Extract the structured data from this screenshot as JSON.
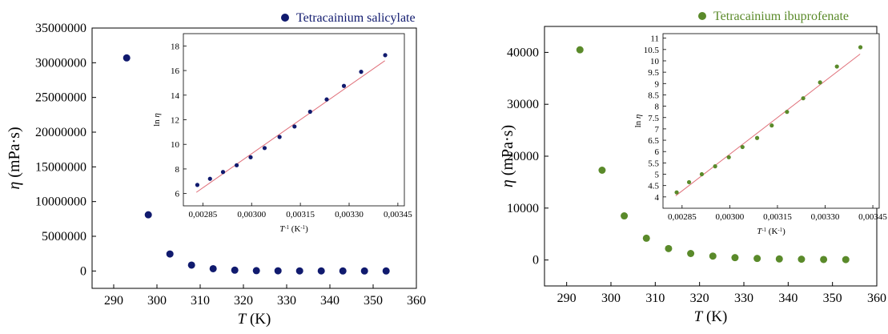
{
  "chart_data": [
    {
      "type": "scatter",
      "legend": "Tetracainium salicylate",
      "legend_position": "top-right",
      "color": "#101a6e",
      "xlabel": "T (K)",
      "ylabel": "η (mPa·s)",
      "xlim": [
        285,
        360
      ],
      "ylim": [
        -2500000,
        35000000
      ],
      "xticks": [
        290,
        300,
        310,
        320,
        330,
        340,
        350,
        360
      ],
      "yticks": [
        0,
        5000000,
        10000000,
        15000000,
        20000000,
        25000000,
        30000000,
        35000000
      ],
      "grid": false,
      "x": [
        293,
        298,
        303,
        308,
        313,
        318,
        323,
        328,
        333,
        338,
        343,
        348,
        353
      ],
      "y": [
        30700000,
        8100000,
        2450000,
        850000,
        330000,
        120000,
        50000,
        25000,
        15000,
        9000,
        6000,
        4000,
        3000
      ],
      "inset": {
        "type": "scatter",
        "xlabel": "T⁻¹ (K⁻¹)",
        "ylabel": "ln η",
        "xlim": [
          0.00279,
          0.00347
        ],
        "ylim": [
          5,
          19
        ],
        "xticks": [
          "0,00285",
          "0,00300",
          "0,00315",
          "0,00330",
          "0,00345"
        ],
        "xtick_values": [
          0.00285,
          0.003,
          0.00315,
          0.0033,
          0.00345
        ],
        "yticks": [
          6,
          8,
          10,
          12,
          14,
          16,
          18
        ],
        "fit_color": "#e0707a",
        "fit_line": [
          [
            0.00283,
            6.1
          ],
          [
            0.00341,
            16.8
          ]
        ],
        "x": [
          0.002833,
          0.002872,
          0.002912,
          0.002954,
          0.002997,
          0.00304,
          0.003086,
          0.003132,
          0.00318,
          0.003231,
          0.003284,
          0.003337,
          0.003411
        ],
        "y": [
          6.7,
          7.2,
          7.75,
          8.3,
          8.95,
          9.7,
          10.6,
          11.45,
          12.65,
          13.65,
          14.75,
          15.9,
          17.25
        ]
      }
    },
    {
      "type": "scatter",
      "legend": "Tetracainium ibuprofenate",
      "legend_position": "top-right",
      "color": "#5a8a2a",
      "xlabel": "T (K)",
      "ylabel": "η (mPa·s)",
      "xlim": [
        285,
        360
      ],
      "ylim": [
        -5000,
        45000
      ],
      "xticks": [
        290,
        300,
        310,
        320,
        330,
        340,
        350,
        360
      ],
      "yticks": [
        0,
        10000,
        20000,
        30000,
        40000
      ],
      "grid": false,
      "x": [
        293,
        298,
        303,
        308,
        313,
        318,
        323,
        328,
        333,
        338,
        343,
        348,
        353
      ],
      "y": [
        40500,
        17300,
        8500,
        4200,
        2200,
        1250,
        750,
        450,
        300,
        200,
        150,
        100,
        80
      ],
      "inset": {
        "type": "scatter",
        "xlabel": "T⁻¹ (K⁻¹)",
        "ylabel": "ln η",
        "xlim": [
          0.00279,
          0.00347
        ],
        "ylim": [
          3.5,
          11.2
        ],
        "xticks": [
          "0,00285",
          "0,00300",
          "0,00315",
          "0,00330",
          "0,00345"
        ],
        "xtick_values": [
          0.00285,
          0.003,
          0.00315,
          0.0033,
          0.00345
        ],
        "yticks": [
          4,
          4.5,
          5,
          5.5,
          6,
          6.5,
          7,
          7.5,
          8,
          8.5,
          9,
          9.5,
          10,
          10.5,
          11
        ],
        "fit_color": "#e0707a",
        "fit_line": [
          [
            0.00283,
            4.05
          ],
          [
            0.00341,
            10.3
          ]
        ],
        "x": [
          0.002833,
          0.002872,
          0.002912,
          0.002954,
          0.002997,
          0.00304,
          0.003086,
          0.003132,
          0.00318,
          0.003231,
          0.003284,
          0.003337,
          0.003411
        ],
        "y": [
          4.2,
          4.65,
          5.0,
          5.35,
          5.75,
          6.2,
          6.6,
          7.15,
          7.75,
          8.35,
          9.05,
          9.75,
          10.6
        ]
      }
    }
  ]
}
